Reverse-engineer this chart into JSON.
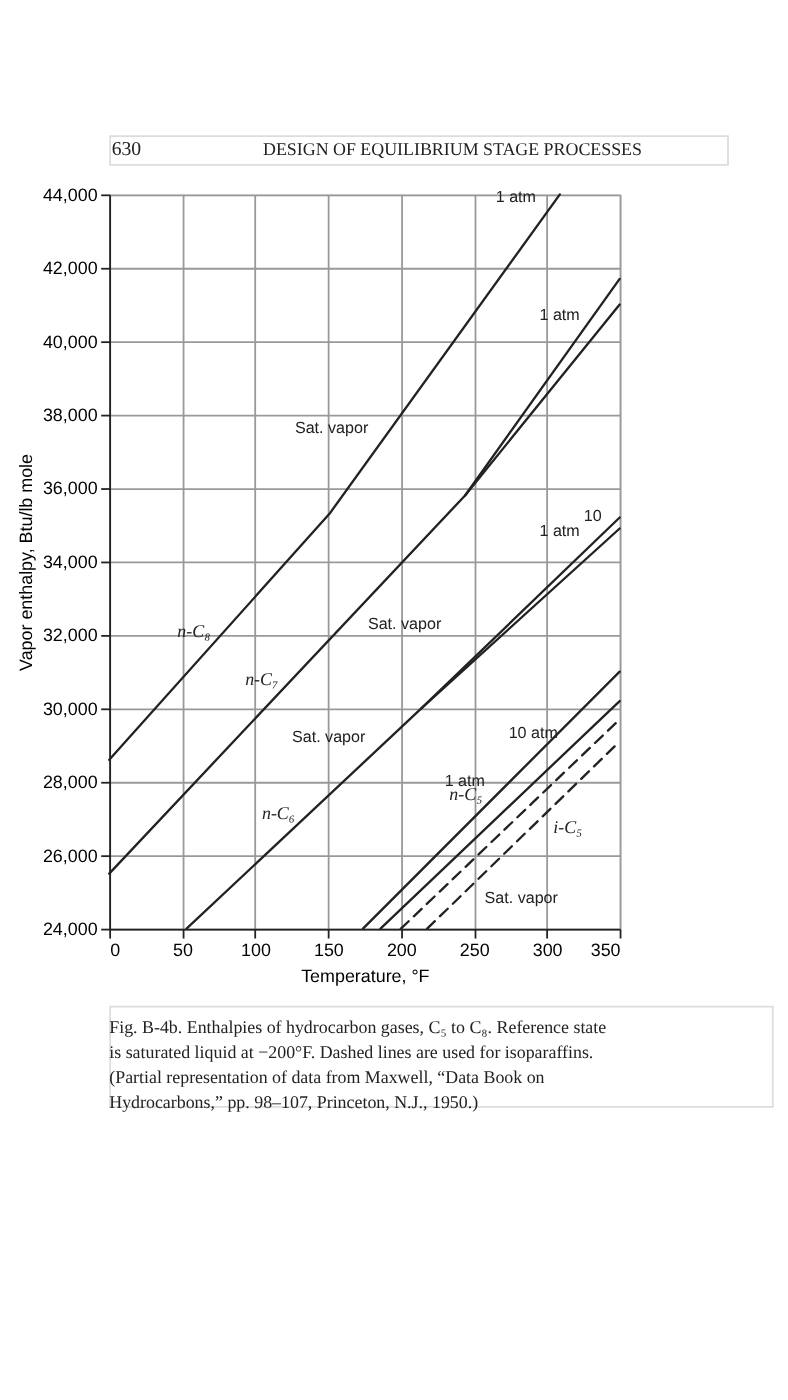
{
  "chart_data": {
    "type": "line",
    "title": "DESIGN OF EQUILIBRIUM STAGE PROCESSES",
    "xlabel": "Temperature, °F",
    "ylabel": "Vapor enthalpy, Btu/lb mole",
    "xlim": [
      0,
      350
    ],
    "xticks": [
      0,
      50,
      100,
      150,
      200,
      250,
      300,
      350
    ],
    "ylim": [
      24000,
      44000
    ],
    "yticks": [
      {
        "value": 24000,
        "label": "24,000"
      },
      {
        "value": 26000,
        "label": "26,000"
      },
      {
        "value": 28000,
        "label": "28,000"
      },
      {
        "value": 30000,
        "label": "30,000"
      },
      {
        "value": 32000,
        "label": "32,000"
      },
      {
        "value": 34000,
        "label": "34,000"
      },
      {
        "value": 36000,
        "label": "36,000"
      },
      {
        "value": 38000,
        "label": "38,000"
      },
      {
        "value": 40000,
        "label": "40,000"
      },
      {
        "value": 42000,
        "label": "42,000"
      },
      {
        "value": 44000,
        "label": "44,000"
      }
    ],
    "grid": true,
    "marker": "none",
    "series": [
      {
        "name": "n-C₈",
        "color": "#222222",
        "line_style": "solid",
        "x": [
          0,
          151,
          309
        ],
        "values": [
          28600,
          35300,
          44000
        ]
      },
      {
        "name": "n-C₇",
        "color": "#222222",
        "line_style": "solid",
        "x": [
          0,
          244,
          350
        ],
        "values": [
          25500,
          35800,
          41700
        ]
      },
      {
        "color": "#222222",
        "line_style": "solid",
        "x": [
          244,
          350
        ],
        "values": [
          35800,
          41000
        ]
      },
      {
        "name": "n-C₆",
        "color": "#222222",
        "line_style": "solid",
        "x": [
          53,
          214,
          350
        ],
        "values": [
          24000,
          30000,
          35200
        ]
      },
      {
        "color": "#222222",
        "line_style": "solid",
        "x": [
          214,
          350
        ],
        "values": [
          30000,
          34900
        ]
      },
      {
        "name": "n-C₅",
        "color": "#222222",
        "line_style": "solid",
        "x": [
          174,
          350
        ],
        "values": [
          24000,
          31000
        ]
      },
      {
        "color": "#222222",
        "line_style": "solid",
        "x": [
          186,
          350
        ],
        "values": [
          24000,
          30200
        ]
      },
      {
        "name": "i-C₅",
        "color": "#222222",
        "line_style": "dashed",
        "x": [
          200,
          350
        ],
        "values": [
          24000,
          29700
        ]
      },
      {
        "color": "#222222",
        "line_style": "dashed",
        "x": [
          218,
          350
        ],
        "values": [
          24000,
          29100
        ]
      }
    ],
    "annotations": [
      "630",
      "Fig. B-4b. Enthalpies of hydrocarbon gases, C₅ to C₈. Reference state is saturated liquid at −200°F. Dashed lines are used for isoparaffins. (Partial representation of data from Maxwell, “Data Book on Hydrocarbons,” pp. 98–107, Princeton, N.J., 1950.)",
      {
        "text": "Sat. vapor",
        "x": 185,
        "y": 37200
      },
      {
        "text": "Sat. vapor",
        "x": 170,
        "y": 32700
      },
      {
        "text": "Sat. vapor",
        "x": 183,
        "y": 28800
      },
      {
        "text": "1 atm",
        "x": 300,
        "y": 43500
      },
      {
        "text": "1 atm",
        "x": 330,
        "y": 40300
      },
      {
        "text": "1 atm",
        "x": 330,
        "y": 34400
      },
      {
        "text": "10",
        "x": 345,
        "y": 34800
      },
      {
        "text": "1 atm",
        "x": 265,
        "y": 27600
      },
      {
        "text": "10 atm",
        "x": 315,
        "y": 28900
      },
      {
        "text": "Sat. vapor",
        "x": 250,
        "y": 25240
      }
    ]
  }
}
